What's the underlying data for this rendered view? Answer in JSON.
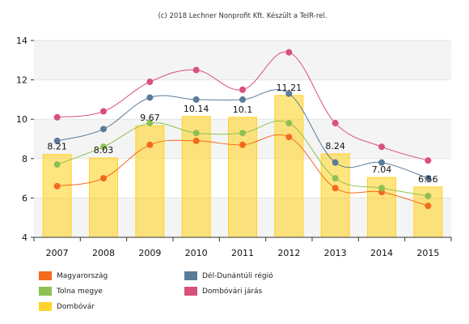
{
  "chart_data": {
    "type": "bar+line",
    "title": "(c) 2018 Lechner Nonprofit Kft. Készült a TeIR-rel.",
    "categories": [
      "2007",
      "2008",
      "2009",
      "2010",
      "2011",
      "2012",
      "2013",
      "2014",
      "2015"
    ],
    "ylim": [
      4,
      14
    ],
    "yticks": [
      4,
      6,
      8,
      10,
      12,
      14
    ],
    "grid": true,
    "legend_position": "bottom",
    "bar_series": {
      "name": "Dombóvár",
      "color": "#FFD42A",
      "values": [
        8.21,
        8.03,
        9.67,
        10.14,
        10.1,
        11.21,
        8.24,
        7.04,
        6.56
      ],
      "labels": [
        "8.21",
        "8.03",
        "9.67",
        "10.14",
        "10.1",
        "11.21",
        "8.24",
        "7.04",
        "6.56"
      ]
    },
    "line_series": [
      {
        "name": "Magyarország",
        "color": "#F26B1D",
        "values": [
          6.6,
          7.0,
          8.7,
          8.9,
          8.7,
          9.1,
          6.5,
          6.3,
          5.6
        ]
      },
      {
        "name": "Dél-Dunántúli régió",
        "color": "#5B7C99",
        "values": [
          8.9,
          9.5,
          11.1,
          11.0,
          11.0,
          11.3,
          7.8,
          7.8,
          7.0
        ]
      },
      {
        "name": "Tolna megye",
        "color": "#8CC152",
        "values": [
          7.7,
          8.6,
          9.8,
          9.3,
          9.3,
          9.8,
          7.0,
          6.5,
          6.1
        ]
      },
      {
        "name": "Dombóvári járás",
        "color": "#D9507A",
        "values": [
          10.1,
          10.4,
          11.9,
          12.5,
          11.5,
          13.4,
          9.8,
          8.6,
          7.9
        ]
      }
    ]
  },
  "legend": [
    {
      "label": "Magyarország",
      "color": "#F26B1D"
    },
    {
      "label": "Dél-Dunántúli régió",
      "color": "#5B7C99"
    },
    {
      "label": "Tolna megye",
      "color": "#8CC152"
    },
    {
      "label": "Dombóvári járás",
      "color": "#D9507A"
    },
    {
      "label": "Dombóvár",
      "color": "#FFD42A"
    }
  ]
}
